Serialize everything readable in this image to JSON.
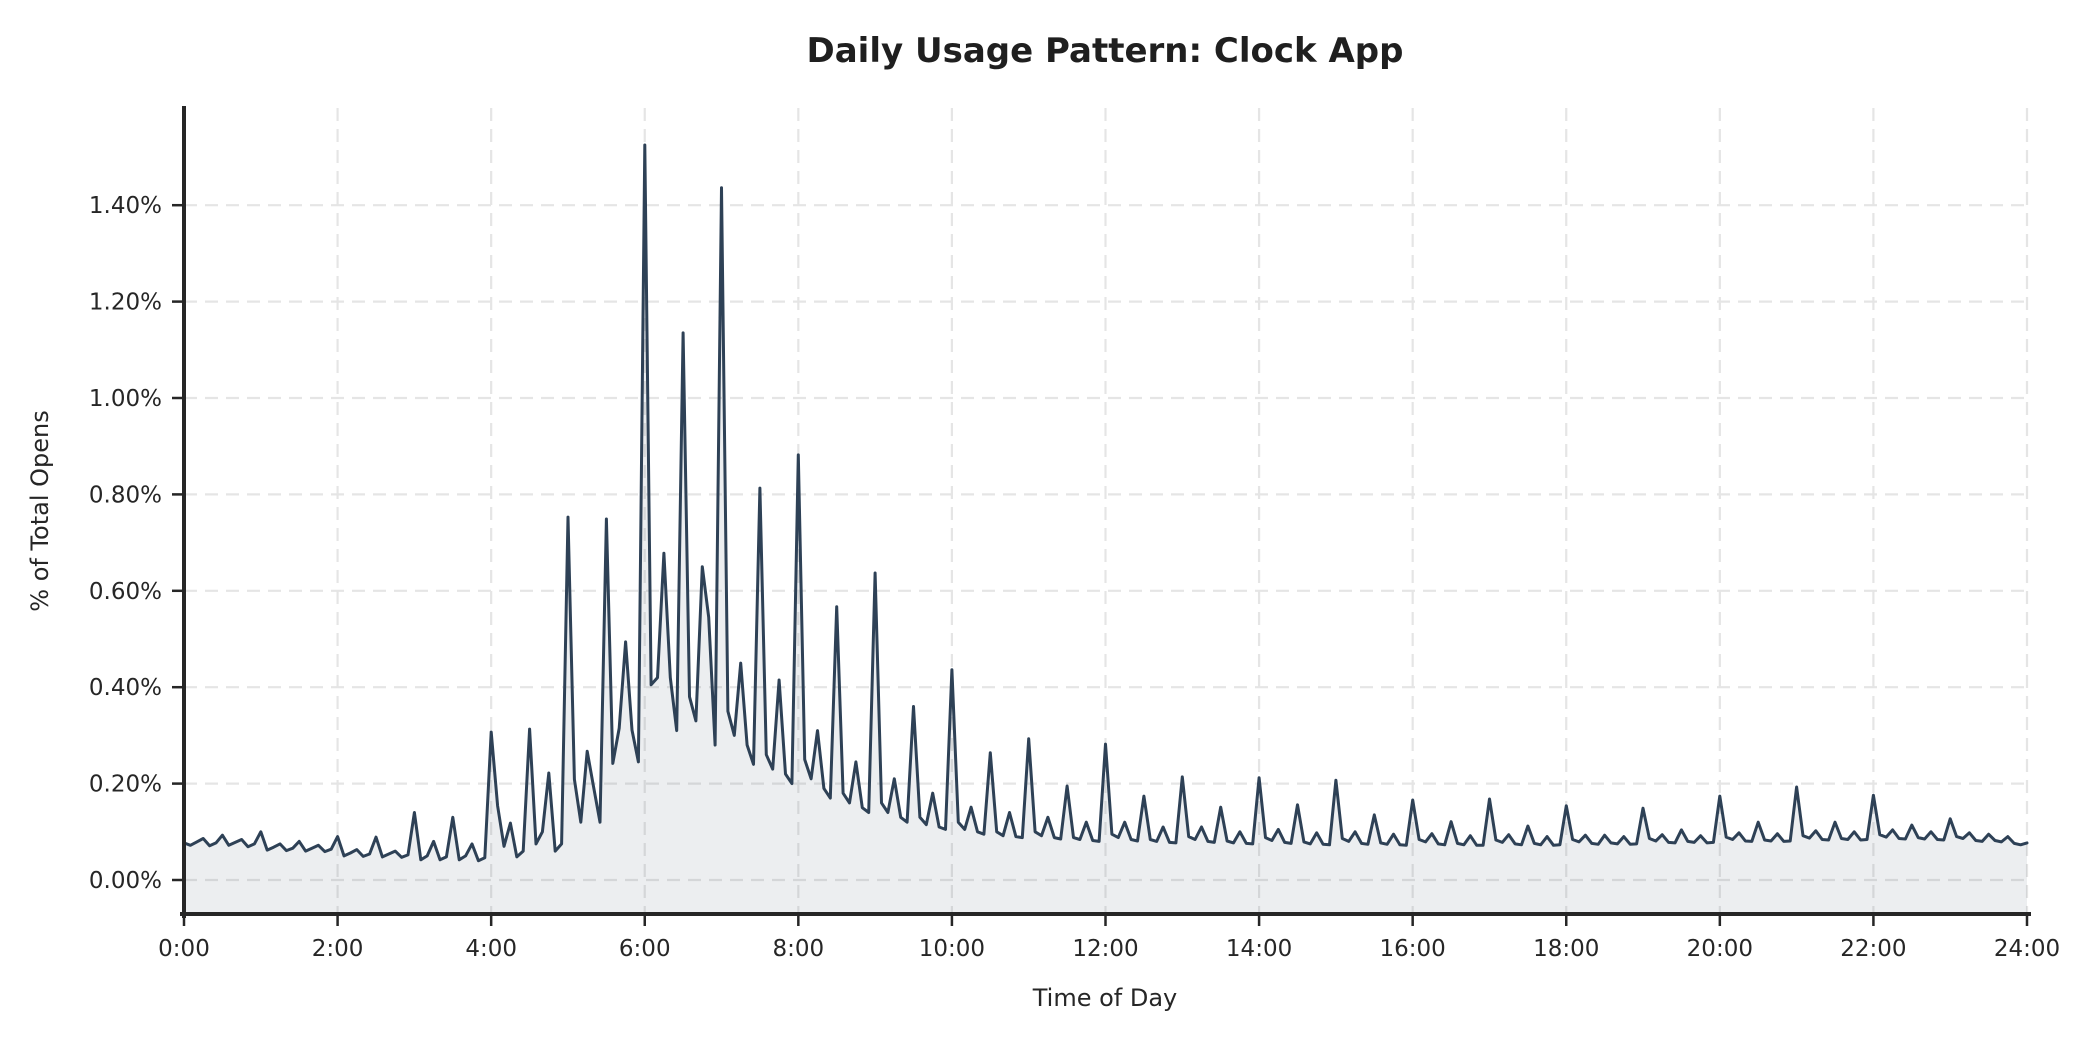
{
  "chart_data": {
    "type": "area",
    "title": "Daily Usage Pattern: Clock App",
    "xlabel": "Time of Day",
    "ylabel": "% of Total Opens",
    "grid": true,
    "legend": "none",
    "x_tick_hours": [
      0,
      2,
      4,
      6,
      8,
      10,
      12,
      14,
      16,
      18,
      20,
      22,
      24
    ],
    "x_tick_labels": [
      "0:00",
      "2:00",
      "4:00",
      "6:00",
      "8:00",
      "10:00",
      "12:00",
      "14:00",
      "16:00",
      "18:00",
      "20:00",
      "22:00",
      "24:00"
    ],
    "y_tick_values": [
      0.0,
      0.2,
      0.4,
      0.6,
      0.8,
      1.0,
      1.2,
      1.4
    ],
    "y_tick_labels": [
      "0.00%",
      "0.20%",
      "0.40%",
      "0.60%",
      "0.80%",
      "1.00%",
      "1.20%",
      "1.40%"
    ],
    "xlim_hours": [
      0,
      24
    ],
    "ylim_pct": [
      -0.075,
      1.6
    ],
    "line_color": "#2e4156",
    "line_width": 3,
    "fill_color": "rgba(46,65,86,0.09)",
    "series": [
      {
        "name": "% of Total Opens",
        "start_minute": 0,
        "interval_minutes": 5,
        "values_pct": [
          0.077,
          0.072,
          0.079,
          0.086,
          0.071,
          0.077,
          0.093,
          0.072,
          0.078,
          0.084,
          0.069,
          0.075,
          0.1,
          0.062,
          0.068,
          0.075,
          0.061,
          0.066,
          0.08,
          0.06,
          0.066,
          0.072,
          0.059,
          0.064,
          0.09,
          0.05,
          0.056,
          0.063,
          0.049,
          0.054,
          0.089,
          0.048,
          0.054,
          0.06,
          0.047,
          0.052,
          0.14,
          0.042,
          0.05,
          0.08,
          0.042,
          0.048,
          0.13,
          0.042,
          0.05,
          0.075,
          0.04,
          0.046,
          0.307,
          0.154,
          0.07,
          0.118,
          0.048,
          0.06,
          0.313,
          0.075,
          0.1,
          0.222,
          0.06,
          0.075,
          0.753,
          0.209,
          0.12,
          0.267,
          0.193,
          0.12,
          0.749,
          0.242,
          0.315,
          0.494,
          0.311,
          0.245,
          1.525,
          0.405,
          0.42,
          0.678,
          0.42,
          0.31,
          1.135,
          0.38,
          0.33,
          0.65,
          0.545,
          0.28,
          1.436,
          0.35,
          0.3,
          0.45,
          0.28,
          0.24,
          0.813,
          0.26,
          0.23,
          0.415,
          0.22,
          0.2,
          0.882,
          0.25,
          0.21,
          0.31,
          0.19,
          0.17,
          0.567,
          0.18,
          0.16,
          0.245,
          0.15,
          0.14,
          0.637,
          0.16,
          0.14,
          0.21,
          0.13,
          0.12,
          0.36,
          0.13,
          0.115,
          0.18,
          0.11,
          0.105,
          0.436,
          0.12,
          0.105,
          0.151,
          0.1,
          0.095,
          0.264,
          0.1,
          0.092,
          0.14,
          0.09,
          0.088,
          0.293,
          0.1,
          0.092,
          0.13,
          0.088,
          0.085,
          0.195,
          0.088,
          0.084,
          0.12,
          0.082,
          0.08,
          0.282,
          0.095,
          0.088,
          0.12,
          0.084,
          0.081,
          0.174,
          0.084,
          0.08,
          0.11,
          0.078,
          0.077,
          0.214,
          0.09,
          0.084,
          0.11,
          0.08,
          0.078,
          0.151,
          0.081,
          0.077,
          0.1,
          0.076,
          0.075,
          0.212,
          0.088,
          0.082,
          0.105,
          0.078,
          0.076,
          0.156,
          0.079,
          0.075,
          0.098,
          0.074,
          0.073,
          0.207,
          0.086,
          0.08,
          0.1,
          0.076,
          0.074,
          0.135,
          0.077,
          0.074,
          0.095,
          0.073,
          0.072,
          0.166,
          0.084,
          0.079,
          0.096,
          0.075,
          0.073,
          0.121,
          0.076,
          0.073,
          0.092,
          0.072,
          0.072,
          0.168,
          0.083,
          0.078,
          0.094,
          0.075,
          0.073,
          0.112,
          0.076,
          0.073,
          0.09,
          0.072,
          0.073,
          0.154,
          0.084,
          0.079,
          0.093,
          0.076,
          0.074,
          0.093,
          0.077,
          0.075,
          0.09,
          0.074,
          0.075,
          0.149,
          0.086,
          0.081,
          0.094,
          0.078,
          0.077,
          0.104,
          0.08,
          0.078,
          0.092,
          0.077,
          0.078,
          0.174,
          0.089,
          0.084,
          0.098,
          0.081,
          0.08,
          0.12,
          0.083,
          0.081,
          0.096,
          0.08,
          0.081,
          0.193,
          0.092,
          0.087,
          0.102,
          0.084,
          0.083,
          0.12,
          0.086,
          0.084,
          0.1,
          0.083,
          0.084,
          0.176,
          0.094,
          0.089,
          0.104,
          0.086,
          0.085,
          0.114,
          0.088,
          0.085,
          0.1,
          0.084,
          0.083,
          0.127,
          0.09,
          0.086,
          0.098,
          0.082,
          0.08,
          0.095,
          0.082,
          0.079,
          0.09,
          0.076,
          0.073,
          0.077
        ]
      }
    ]
  }
}
